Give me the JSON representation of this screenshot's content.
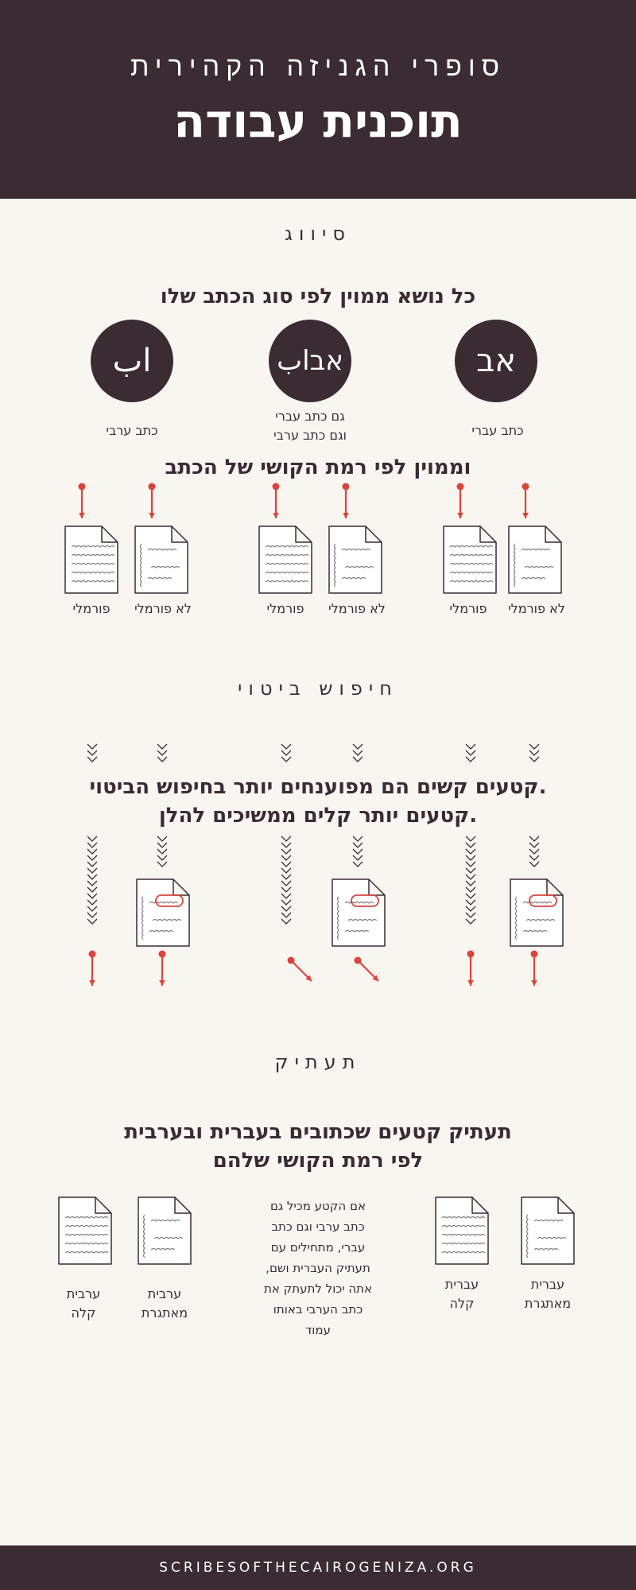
{
  "header": {
    "subtitle": "סופרי הגניזה הקהירית",
    "title": "תוכנית עבודה"
  },
  "sorting": {
    "label": "סיווג",
    "heading": "כל נושא ממוין לפי סוג הכתב שלו",
    "scripts": [
      {
        "symbol": "אב",
        "caption": "כתב עברי"
      },
      {
        "symbol": "אבاب",
        "caption": "גם כתב עברי\nוגם כתב ערבי"
      },
      {
        "symbol": "اب",
        "caption": "כתב ערבי"
      }
    ],
    "difficulty_heading": "וממוין לפי רמת הקושי של הכתב",
    "doc_labels": [
      "לא פורמלי",
      "פורמלי",
      "לא פורמלי",
      "פורמלי",
      "לא פורמלי",
      "פורמלי"
    ]
  },
  "search": {
    "label": "חיפוש ביטוי",
    "heading_line1": "קטעים קשים הם מפוענחים יותר בחיפוש הביטוי.",
    "heading_line2": "קטעים יותר קלים ממשיכים להלן."
  },
  "transcription": {
    "label": "תעתיק",
    "heading_line1": "תעתיק קטעים שכתובים בעברית ובערבית",
    "heading_line2": "לפי רמת הקושי שלהם",
    "docs": [
      {
        "line1": "עברית",
        "line2": "מאתגרת"
      },
      {
        "line1": "עברית",
        "line2": "קלה"
      },
      {
        "line1": "ערבית",
        "line2": "מאתגרת"
      },
      {
        "line1": "ערבית",
        "line2": "קלה"
      }
    ],
    "description": "אם הקטע מכיל גם\nכתב ערבי וגם כתב\nעברי, מתחילים עם\n,תעתיק העברית ושם\nאתה יכול לתעתק את\nכתב הערבי באותו\nעמוד"
  },
  "footer": {
    "url": "SCRIBESOFTHECAIROGENIZA.ORG"
  },
  "colors": {
    "dark": "#3a2c32",
    "accent": "#d9453c",
    "background": "#f9f6f1"
  }
}
